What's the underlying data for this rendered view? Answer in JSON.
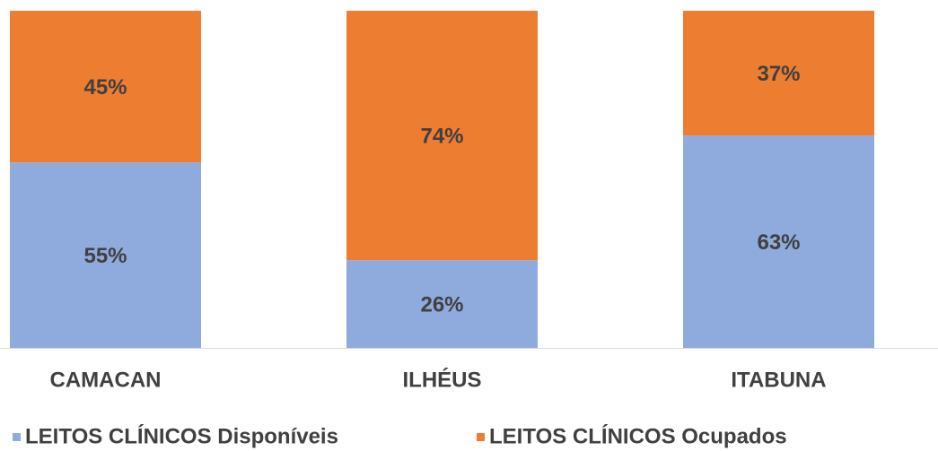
{
  "chart_data": {
    "type": "stacked_bar",
    "categories": [
      "CAMACAN",
      "ILHÉUS",
      "ITABUNA"
    ],
    "series": [
      {
        "name": "LEITOS CLÍNICOS Disponíveis",
        "color": "#8faadc",
        "values": [
          55,
          26,
          63
        ],
        "value_labels": [
          "55%",
          "26%",
          "63%"
        ]
      },
      {
        "name": "LEITOS CLÍNICOS Ocupados",
        "color": "#ed7d31",
        "values": [
          45,
          74,
          37
        ],
        "value_labels": [
          "45%",
          "74%",
          "37%"
        ]
      }
    ],
    "ylim": [
      0,
      100
    ],
    "legend": "bottom"
  }
}
